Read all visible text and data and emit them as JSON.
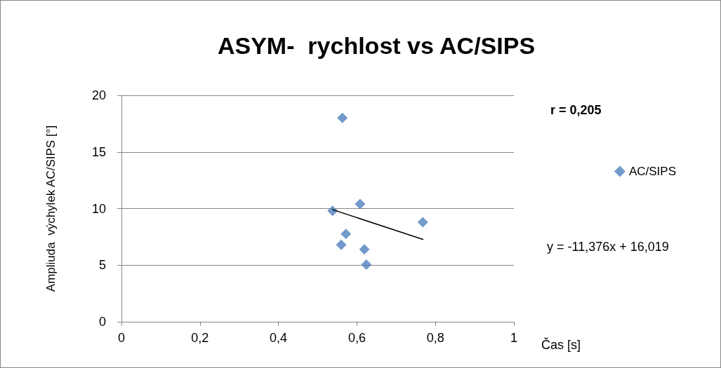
{
  "chart_data": {
    "type": "scatter",
    "title": "ASYM-  rychlost vs AC/SIPS",
    "xlabel": "Čas [s]",
    "ylabel": "Ampliuda  výchylek AC/SIPS [°]",
    "xlim": [
      0,
      1
    ],
    "xticks": [
      0,
      {
        "value": 0.2,
        "label": "0,2"
      },
      {
        "value": 0.4,
        "label": "0,4"
      },
      {
        "value": 0.6,
        "label": "0,6"
      },
      {
        "value": 0.8,
        "label": "0,8"
      },
      1
    ],
    "ylim": [
      0,
      20
    ],
    "yticks": [
      0,
      5,
      10,
      15,
      20
    ],
    "grid": "y",
    "legend": "right",
    "marker": "diamond",
    "series": [
      {
        "name": "AC/SIPS",
        "color": "#4f81bd",
        "x": [
          0.563,
          0.538,
          0.608,
          0.572,
          0.56,
          0.619,
          0.624,
          0.768
        ],
        "values": [
          18.0,
          9.8,
          10.4,
          7.75,
          6.8,
          6.4,
          5.05,
          8.8
        ]
      },
      {
        "type": "line",
        "color": "#000000",
        "marker": "none",
        "x": [
          0.538,
          0.768
        ],
        "values": [
          9.9,
          7.28
        ]
      }
    ],
    "annotations": [
      "r = 0,205",
      "y = -11,376x + 16,019"
    ]
  }
}
